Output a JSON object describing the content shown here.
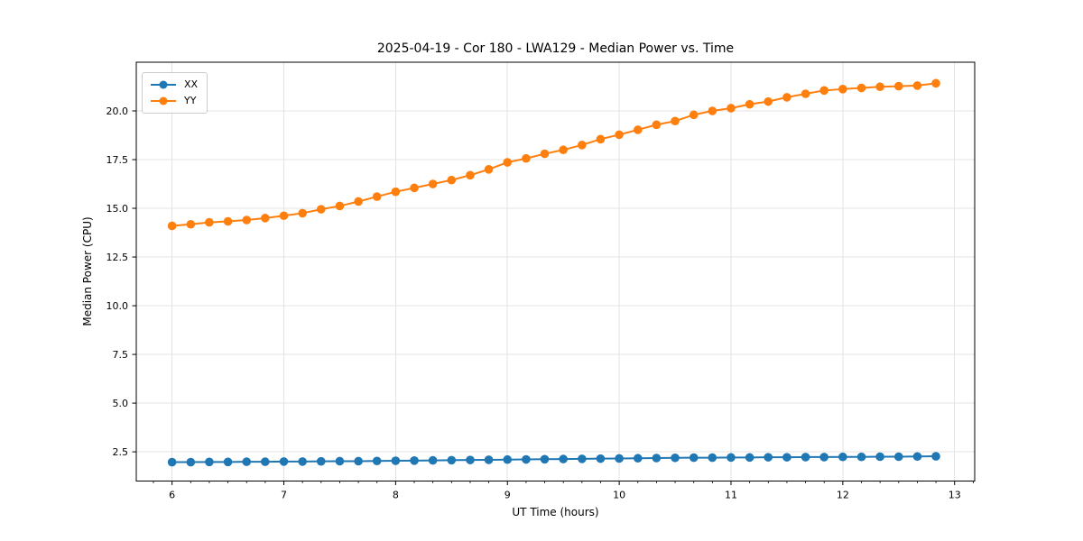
{
  "figure": {
    "background": "#ffffff"
  },
  "chart_data": {
    "type": "line",
    "title": "2025-04-19 - Cor 180 - LWA129 - Median Power vs. Time",
    "xlabel": "UT Time (hours)",
    "ylabel": "Median Power (CPU)",
    "xlim": [
      5.68,
      13.18
    ],
    "ylim": [
      1.0,
      22.5
    ],
    "grid": true,
    "legend_position": "upper-left",
    "xticks": {
      "values": [
        6,
        7,
        8,
        9,
        10,
        11,
        12,
        13
      ],
      "labels": [
        "6",
        "7",
        "8",
        "9",
        "10",
        "11",
        "12",
        "13"
      ]
    },
    "yticks": {
      "values": [
        2.5,
        5.0,
        7.5,
        10.0,
        12.5,
        15.0,
        17.5,
        20.0
      ],
      "labels": [
        "2.5",
        "5.0",
        "7.5",
        "10.0",
        "12.5",
        "15.0",
        "17.5",
        "20.0"
      ]
    },
    "x_minor_step": 0.16667,
    "x": [
      6.0,
      6.167,
      6.333,
      6.5,
      6.667,
      6.833,
      7.0,
      7.167,
      7.333,
      7.5,
      7.667,
      7.833,
      8.0,
      8.167,
      8.333,
      8.5,
      8.667,
      8.833,
      9.0,
      9.167,
      9.333,
      9.5,
      9.667,
      9.833,
      10.0,
      10.167,
      10.333,
      10.5,
      10.667,
      10.833,
      11.0,
      11.167,
      11.333,
      11.5,
      11.667,
      11.833,
      12.0,
      12.167,
      12.333,
      12.5,
      12.667,
      12.833
    ],
    "series": [
      {
        "name": "XX",
        "color": "#1f77b4",
        "values": [
          1.97,
          1.97,
          1.98,
          1.98,
          1.99,
          1.99,
          2.0,
          2.0,
          2.01,
          2.02,
          2.02,
          2.03,
          2.04,
          2.05,
          2.06,
          2.07,
          2.08,
          2.09,
          2.1,
          2.11,
          2.12,
          2.13,
          2.14,
          2.15,
          2.16,
          2.17,
          2.18,
          2.19,
          2.2,
          2.2,
          2.21,
          2.21,
          2.22,
          2.22,
          2.23,
          2.23,
          2.24,
          2.24,
          2.25,
          2.25,
          2.26,
          2.27
        ]
      },
      {
        "name": "YY",
        "color": "#ff7f0e",
        "values": [
          14.1,
          14.18,
          14.28,
          14.33,
          14.4,
          14.5,
          14.62,
          14.75,
          14.95,
          15.12,
          15.35,
          15.6,
          15.85,
          16.05,
          16.25,
          16.45,
          16.7,
          17.0,
          17.36,
          17.56,
          17.8,
          18.0,
          18.25,
          18.55,
          18.78,
          19.03,
          19.29,
          19.48,
          19.8,
          20.0,
          20.14,
          20.34,
          20.48,
          20.7,
          20.88,
          21.05,
          21.12,
          21.18,
          21.24,
          21.27,
          21.3,
          21.42
        ]
      }
    ],
    "style": {
      "grid_color": "#e3e3e3",
      "spine_color": "#000000",
      "tick_color": "#000000",
      "text_color": "#000000",
      "legend_border_color": "#cccccc"
    }
  }
}
